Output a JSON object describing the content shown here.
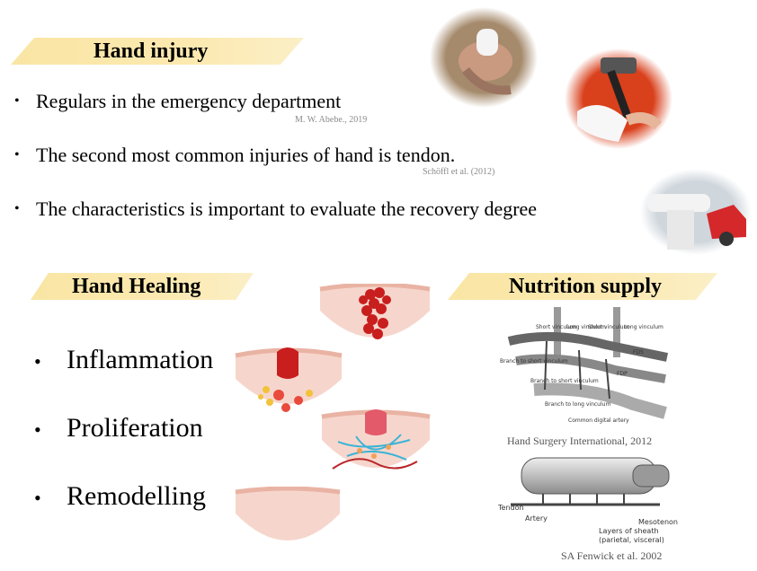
{
  "slide": {
    "hand_injury": {
      "title": "Hand injury",
      "bullets": [
        {
          "text": "Regulars in the emergency department",
          "citation": "M. W. Abebe., 2019"
        },
        {
          "text": "The second most common injuries of hand is tendon.",
          "citation": "Schöffl et al. (2012)"
        },
        {
          "text": "The characteristics is important to evaluate the recovery degree",
          "citation": ""
        }
      ]
    },
    "hand_healing": {
      "title": "Hand Healing",
      "stages": [
        "Inflammation",
        "Proliferation",
        "Remodelling"
      ]
    },
    "nutrition_supply": {
      "title": "Nutrition supply",
      "figure1_caption": "Hand Surgery International, 2012",
      "figure1_labels": [
        "Short vinculum",
        "Long vinculum",
        "Short vinculum",
        "Long vinculum",
        "FDS",
        "FDP",
        "Branch to short vinculum",
        "Branch to short vinculum",
        "Branch to long vinculum",
        "Common digital artery"
      ],
      "figure2_caption": "SA Fenwick  et al. 2002",
      "figure2_labels": {
        "tendon": "Tendon",
        "artery": "Artery",
        "sheath": "Layers of sheath",
        "sheath_sub": "(parietal, visceral)",
        "mesotenon": "Mesotenon"
      }
    },
    "colors": {
      "banner": "#f9e6a4",
      "citation": "#8a8a8a",
      "blood": "#c81e1e"
    }
  }
}
